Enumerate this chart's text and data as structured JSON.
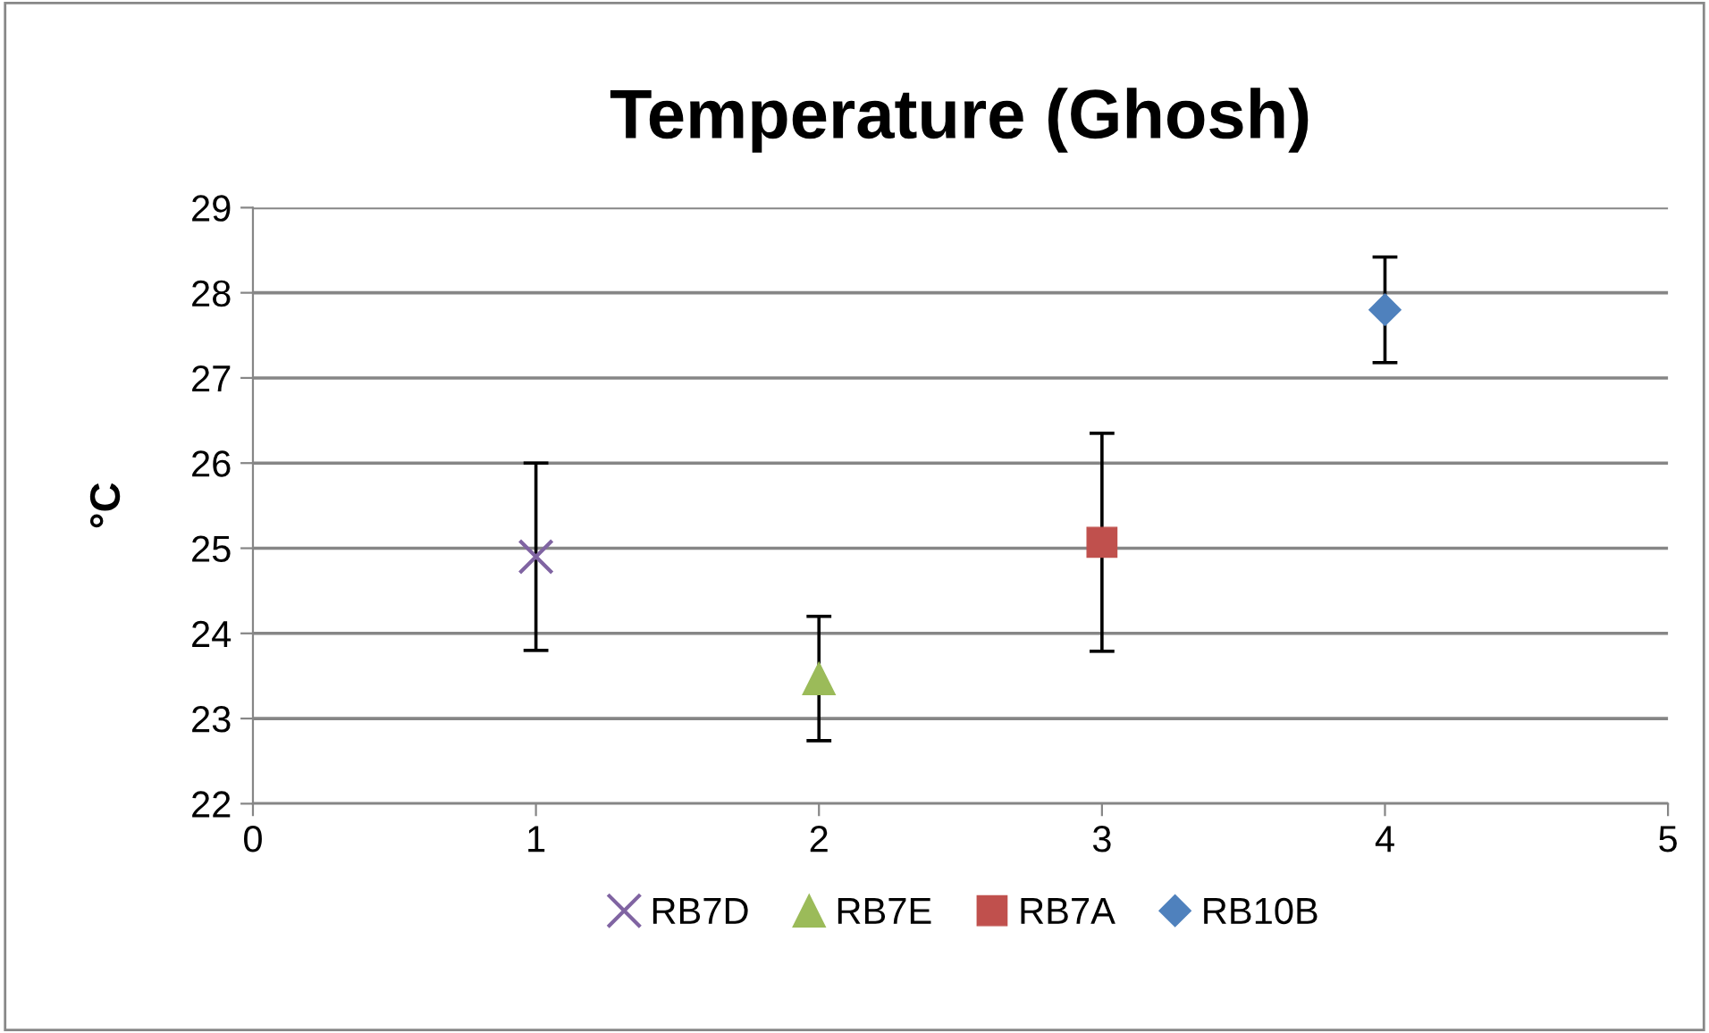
{
  "chart_data": {
    "type": "scatter",
    "title": "Temperature (Ghosh)",
    "ylabel": "°C",
    "xlim": [
      0,
      5
    ],
    "xticks": [
      0,
      1,
      2,
      3,
      4,
      5
    ],
    "ylim": [
      22,
      29
    ],
    "yticks": [
      22,
      23,
      24,
      25,
      26,
      27,
      28,
      29
    ],
    "grid": "y",
    "legend": "bottom",
    "series": [
      {
        "name": "RB7D",
        "color": "#8064a2",
        "marker": "cross",
        "x": [
          1
        ],
        "values": [
          24.9
        ],
        "errors": [
          1.1
        ]
      },
      {
        "name": "RB7E",
        "color": "#9bbb59",
        "marker": "triangle",
        "x": [
          2
        ],
        "values": [
          23.47
        ],
        "errors": [
          0.73
        ]
      },
      {
        "name": "RB7A",
        "color": "#c0504d",
        "marker": "square",
        "x": [
          3
        ],
        "values": [
          25.07
        ],
        "errors": [
          1.28
        ]
      },
      {
        "name": "RB10B",
        "color": "#4f81bd",
        "marker": "diamond",
        "x": [
          4
        ],
        "values": [
          27.8
        ],
        "errors": [
          0.62
        ]
      }
    ]
  }
}
